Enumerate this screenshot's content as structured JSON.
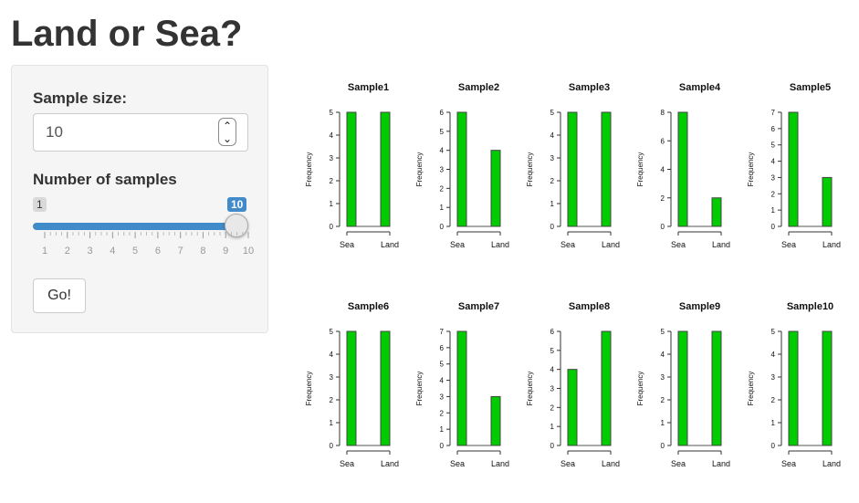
{
  "app": {
    "title": "Land or Sea?"
  },
  "sidebar": {
    "sample_size": {
      "label": "Sample size:",
      "value": "10"
    },
    "number_of_samples": {
      "label": "Number of samples",
      "min_badge": "1",
      "max_badge": "10",
      "selected_value": 10,
      "ticks": [
        "1",
        "2",
        "3",
        "4",
        "5",
        "6",
        "7",
        "8",
        "9",
        "10"
      ]
    },
    "go_button": {
      "label": "Go!"
    }
  },
  "colors": {
    "bar_fill": "#00cc00",
    "slider_accent": "#428bca"
  },
  "chart_data": [
    {
      "type": "bar",
      "title": "Sample1",
      "ylabel": "Frequency",
      "categories": [
        "Sea",
        "Land"
      ],
      "values": [
        5,
        5
      ],
      "yticks": [
        0,
        1,
        2,
        3,
        4,
        5
      ]
    },
    {
      "type": "bar",
      "title": "Sample2",
      "ylabel": "Frequency",
      "categories": [
        "Sea",
        "Land"
      ],
      "values": [
        6,
        4
      ],
      "yticks": [
        0,
        1,
        2,
        3,
        4,
        5,
        6
      ]
    },
    {
      "type": "bar",
      "title": "Sample3",
      "ylabel": "Frequency",
      "categories": [
        "Sea",
        "Land"
      ],
      "values": [
        5,
        5
      ],
      "yticks": [
        0,
        1,
        2,
        3,
        4,
        5
      ]
    },
    {
      "type": "bar",
      "title": "Sample4",
      "ylabel": "Frequency",
      "categories": [
        "Sea",
        "Land"
      ],
      "values": [
        8,
        2
      ],
      "yticks": [
        0,
        2,
        4,
        6,
        8
      ]
    },
    {
      "type": "bar",
      "title": "Sample5",
      "ylabel": "Frequency",
      "categories": [
        "Sea",
        "Land"
      ],
      "values": [
        7,
        3
      ],
      "yticks": [
        0,
        1,
        2,
        3,
        4,
        5,
        6,
        7
      ]
    },
    {
      "type": "bar",
      "title": "Sample6",
      "ylabel": "Frequency",
      "categories": [
        "Sea",
        "Land"
      ],
      "values": [
        5,
        5
      ],
      "yticks": [
        0,
        1,
        2,
        3,
        4,
        5
      ]
    },
    {
      "type": "bar",
      "title": "Sample7",
      "ylabel": "Frequency",
      "categories": [
        "Sea",
        "Land"
      ],
      "values": [
        7,
        3
      ],
      "yticks": [
        0,
        1,
        2,
        3,
        4,
        5,
        6,
        7
      ]
    },
    {
      "type": "bar",
      "title": "Sample8",
      "ylabel": "Frequency",
      "categories": [
        "Sea",
        "Land"
      ],
      "values": [
        4,
        6
      ],
      "yticks": [
        0,
        1,
        2,
        3,
        4,
        5,
        6
      ]
    },
    {
      "type": "bar",
      "title": "Sample9",
      "ylabel": "Frequency",
      "categories": [
        "Sea",
        "Land"
      ],
      "values": [
        5,
        5
      ],
      "yticks": [
        0,
        1,
        2,
        3,
        4,
        5
      ]
    },
    {
      "type": "bar",
      "title": "Sample10",
      "ylabel": "Frequency",
      "categories": [
        "Sea",
        "Land"
      ],
      "values": [
        5,
        5
      ],
      "yticks": [
        0,
        1,
        2,
        3,
        4,
        5
      ]
    }
  ]
}
